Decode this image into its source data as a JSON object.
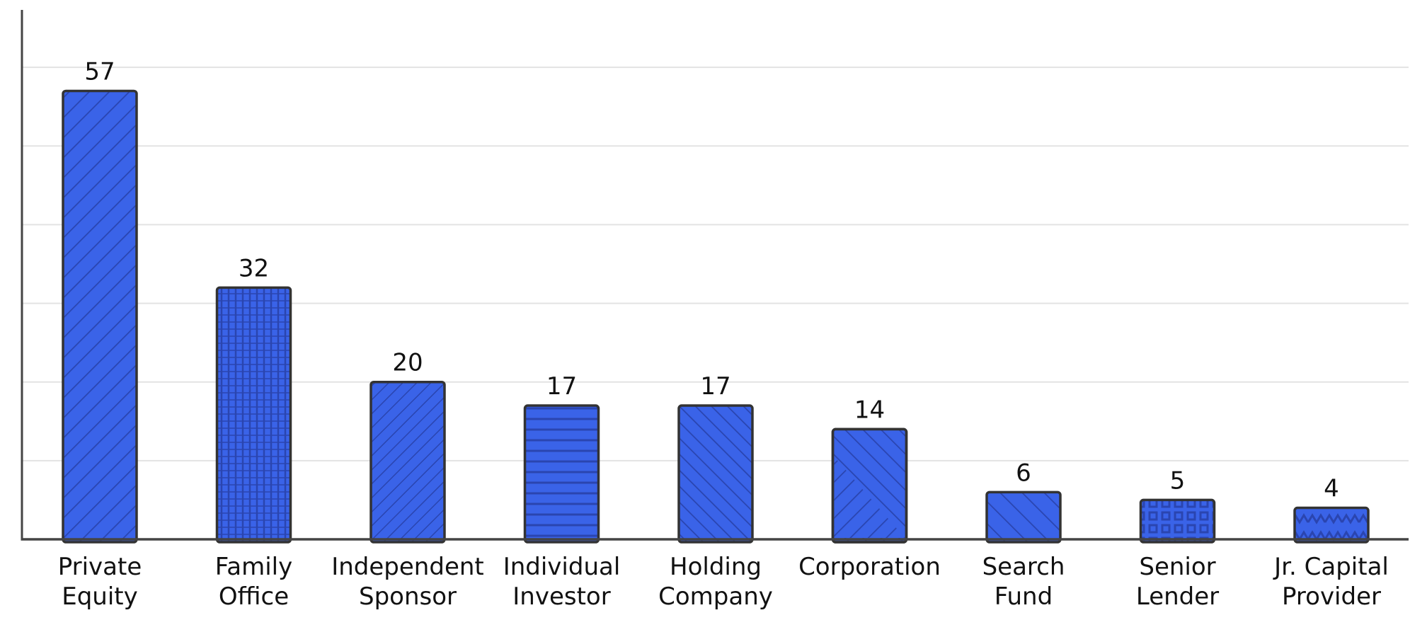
{
  "chart_data": {
    "type": "bar",
    "title": "",
    "xlabel": "",
    "ylabel": "",
    "categories": [
      [
        "Private",
        "Equity"
      ],
      [
        "Family",
        "Office"
      ],
      [
        "Independent",
        "Sponsor"
      ],
      [
        "Individual",
        "Investor"
      ],
      [
        "Holding",
        "Company"
      ],
      [
        "Corporation"
      ],
      [
        "Search",
        "Fund"
      ],
      [
        "Senior",
        "Lender"
      ],
      [
        "Jr. Capital",
        "Provider"
      ]
    ],
    "values": [
      57,
      32,
      20,
      17,
      17,
      14,
      6,
      5,
      4
    ],
    "value_labels": [
      "57",
      "32",
      "20",
      "17",
      "17",
      "14",
      "6",
      "5",
      "4"
    ],
    "ylim": [
      0,
      67.3
    ],
    "gridline_values": [
      10,
      20,
      30,
      40,
      50,
      60
    ],
    "grid": true,
    "y_tick_labels_shown": false,
    "bar_color": "#3a63e8",
    "bar_outline_color": "#333333",
    "pattern_stroke_color": "#2a45b0",
    "bar_patterns": [
      "diag-down",
      "crosshatch-dense",
      "diag-down-fine",
      "horizontal",
      "diag-up",
      "diag-mixed",
      "diag-up-wide",
      "grid-squares",
      "zigzag"
    ]
  }
}
